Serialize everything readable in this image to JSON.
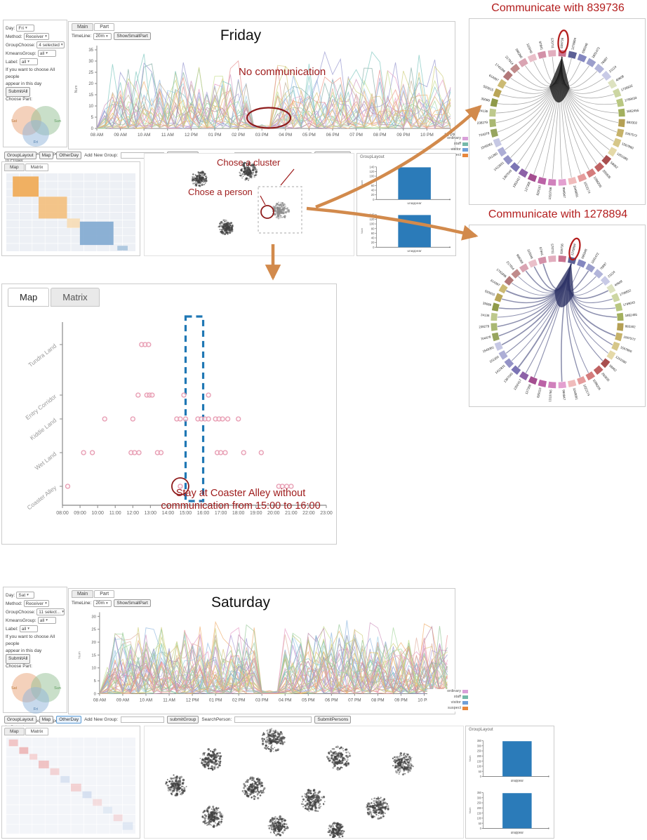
{
  "colors": {
    "annotation_red": "#9e1b1b",
    "title_red": "#b31d1d",
    "arrow_orange": "#d28a4c",
    "bar_blue": "#2b7bb9",
    "dash_blue": "#1f77b4",
    "scatter_pink": "#e79cb2",
    "panel_border": "#cccccc"
  },
  "toolbar": {
    "group_layout": "GroupLayout",
    "map": "Map",
    "other_day": "OtherDay",
    "add_new_group": "Add New Group:",
    "submit_group": "submitGroup",
    "search_person": "SearchPerson:",
    "submit_persons": "SubmitPersons",
    "group_input_value": "",
    "search_input_value": ""
  },
  "venn": {
    "circles": [
      {
        "label": "Sat",
        "color": "#e9a477",
        "text_color": "#c07a3a"
      },
      {
        "label": "Sun",
        "color": "#93bf93",
        "text_color": "#5a9a5a"
      },
      {
        "label": "Fri",
        "color": "#8fb3d9",
        "text_color": "#4a7aaa"
      }
    ]
  },
  "legend": {
    "entries": [
      {
        "label": "ordinary",
        "color": "#d9a0d9"
      },
      {
        "label": "staff",
        "color": "#74b9a8"
      },
      {
        "label": "visitor",
        "color": "#6f9fd8"
      },
      {
        "label": "suspect",
        "color": "#e8873c"
      }
    ]
  },
  "friday": {
    "controls": {
      "day_label": "Day:",
      "day_value": "Fri",
      "method_label": "Method:",
      "method_value": "Receiver",
      "group_choose_label": "GroupChoose:",
      "group_choose_value": "4 selected",
      "kmeans_label": "KmeansGroup:",
      "kmeans_value": "all",
      "label_label": "Label:",
      "label_value": "all",
      "hint_line1": "If you want to choose All people",
      "hint_line2": "appear in this day",
      "submit_all": "SubmitAll",
      "choose_part": "Choose Part:",
      "you_choose": "You Choose: people appear in Friday"
    },
    "header": {
      "tab_main": "Main",
      "tab_part": "Part",
      "timeline_label": "TimeLine:",
      "timeline_value": "20m",
      "show_small": "ShowSmallPart"
    },
    "title": "Friday",
    "annotations": {
      "no_comm": "No communication",
      "chose_cluster": "Chose a cluster",
      "chose_person": "Chose a person"
    },
    "mini_tabs": {
      "map": "Map",
      "matrix": "Matrix"
    },
    "grouplayout_title": "GroupLayout"
  },
  "saturday": {
    "controls": {
      "day_label": "Day:",
      "day_value": "Sat",
      "method_label": "Method:",
      "method_value": "Receiver",
      "group_choose_label": "GroupChoose:",
      "group_choose_value": "11 select...",
      "kmeans_label": "KmeansGroup:",
      "kmeans_value": "all",
      "label_label": "Label:",
      "label_value": "all",
      "hint_line1": "If you want to choose All people",
      "hint_line2": "appear in this day",
      "submit_all": "SubmitAll",
      "choose_part": "Choose Part:",
      "you_choose": "You Choose: people appear in Saturday"
    },
    "header": {
      "tab_main": "Main",
      "tab_part": "Part",
      "timeline_label": "TimeLine:",
      "timeline_value": "20m",
      "show_small": "ShowSmallPart"
    },
    "title": "Saturday",
    "mini_tabs": {
      "map": "Map",
      "matrix": "Matrix"
    },
    "grouplayout_title": "GroupLayout"
  },
  "detail_map": {
    "tab_map": "Map",
    "tab_matrix": "Matrix",
    "annotation_line1": "Stay at Coaster Alley without",
    "annotation_line2": "communication from 15:00 to 16:00"
  },
  "chord1": {
    "title": "Communicate with 839736"
  },
  "chord2": {
    "title": "Communicate with 1278894"
  },
  "chart_data": [
    {
      "id": "friday_timeline",
      "type": "line",
      "title": "Friday",
      "ylabel": "Num",
      "ylim": [
        0,
        35
      ],
      "yticks": [
        0,
        5,
        10,
        15,
        20,
        25,
        30,
        35
      ],
      "x_ticks": [
        "08 AM",
        "09 AM",
        "10 AM",
        "11 AM",
        "12 PM",
        "01 PM",
        "02 PM",
        "03 PM",
        "04 PM",
        "05 PM",
        "06 PM",
        "07 PM",
        "08 PM",
        "09 PM",
        "10 PM",
        "11 PM"
      ],
      "hour_range": [
        8,
        23
      ],
      "series_count": 26,
      "points_per_hour": 3,
      "gap_hours": [
        14.6,
        15.4
      ],
      "annotation": "No communication",
      "grid": false,
      "legend_position": "none"
    },
    {
      "id": "saturday_timeline",
      "type": "line",
      "title": "Saturday",
      "ylabel": "Num",
      "ylim": [
        0,
        30
      ],
      "yticks": [
        0,
        5,
        10,
        15,
        20,
        25,
        30
      ],
      "x_ticks": [
        "08 AM",
        "09 AM",
        "10 AM",
        "11 AM",
        "12 PM",
        "01 PM",
        "02 PM",
        "03 PM",
        "04 PM",
        "05 PM",
        "06 PM",
        "07 PM",
        "08 PM",
        "09 PM",
        "10 PM",
        "11 PM"
      ],
      "hour_range": [
        8,
        23
      ],
      "series_count": 42,
      "points_per_hour": 3,
      "gap_hours": [
        14.7,
        15.8
      ],
      "annotation": "",
      "grid": false,
      "legend_position": "none"
    },
    {
      "id": "friday_grouplayout",
      "type": "bar",
      "title": "GroupLayout",
      "ylabel": "Num",
      "bar_color": "#2b7bb9",
      "charts": [
        {
          "categories": [
            "unappear"
          ],
          "values": [
            138
          ],
          "ylim": [
            0,
            140
          ],
          "yticks": [
            0,
            20,
            40,
            60,
            80,
            100,
            120,
            140
          ]
        },
        {
          "categories": [
            "unappear"
          ],
          "values": [
            138
          ],
          "ylim": [
            0,
            140
          ],
          "yticks": [
            0,
            20,
            40,
            60,
            80,
            100,
            120,
            140
          ]
        }
      ]
    },
    {
      "id": "saturday_grouplayout",
      "type": "bar",
      "title": "GroupLayout",
      "ylabel": "Num",
      "bar_color": "#2b7bb9",
      "charts": [
        {
          "categories": [
            "unappear"
          ],
          "values": [
            345
          ],
          "ylim": [
            0,
            350
          ],
          "yticks": [
            0,
            50,
            100,
            150,
            200,
            250,
            300,
            350
          ]
        },
        {
          "categories": [
            "unappear"
          ],
          "values": [
            345
          ],
          "ylim": [
            0,
            350
          ],
          "yticks": [
            0,
            50,
            100,
            150,
            200,
            250,
            300,
            350
          ]
        }
      ]
    },
    {
      "id": "friday_map",
      "type": "scatter",
      "point_color": "#e79cb2",
      "rows": [
        "Tundra Land",
        "Entry Corridor",
        "Kiddie Land",
        "Wet Land",
        "Coaster Alley"
      ],
      "x_ticks": [
        "08:00",
        "09:00",
        "10:00",
        "11:00",
        "12:00",
        "13:00",
        "14:00",
        "15:00",
        "16:00",
        "17:00",
        "18:00",
        "19:00",
        "20:00",
        "21:00",
        "22:00",
        "23:00"
      ],
      "hour_range": [
        8,
        23
      ],
      "row_points": [
        [
          12.5,
          12.7,
          12.9
        ],
        [
          12.3,
          12.8,
          12.95,
          13.1,
          14.9,
          16.3
        ],
        [
          10.4,
          12.0,
          14.5,
          14.7,
          15.0,
          15.7,
          15.9,
          16.1,
          16.3,
          16.7,
          16.9,
          17.1,
          17.4,
          18.0
        ],
        [
          9.2,
          9.7,
          11.9,
          12.1,
          12.35,
          13.4,
          13.6,
          16.8,
          17.0,
          17.25,
          18.3,
          19.3
        ],
        [
          8.3,
          14.7,
          20.3,
          20.5,
          20.75,
          21.0
        ]
      ],
      "highlight_rect_hours": [
        15,
        16
      ],
      "highlight_circle": {
        "row_index": 4,
        "hour": 14.7
      },
      "annotation_line1": "Stay at Coaster Alley without",
      "annotation_line2": "communication from 15:00 to 16:00"
    },
    {
      "id": "chord_839736",
      "type": "chord",
      "title": "Communicate with 839736",
      "highlight": "839736",
      "chord_color": "rgba(25,25,25,0.38)",
      "bundle_color": "#1a1a1a",
      "all_connected": true,
      "nodes": [
        "839736",
        "1278894",
        "695948",
        "1831472",
        "76897",
        "21124",
        "40608",
        "1706832",
        "1799033",
        "1862455",
        "883302",
        "1067572",
        "1567860",
        "1251080",
        "58062",
        "250835",
        "1088205",
        "1022174",
        "1049091",
        "994947",
        "1310766",
        "829110",
        "127368",
        "1352417",
        "1397043",
        "1412831",
        "151260",
        "1549361",
        "704378",
        "238279",
        "24136",
        "35089",
        "593915",
        "614397",
        "1743396",
        "217914",
        "996266",
        "110049",
        "97841",
        "570711"
      ],
      "palette": [
        "#c9738f",
        "#5c6096",
        "#8487c0",
        "#9b9ecb",
        "#b2b5da",
        "#c8cae6",
        "#dde2c0",
        "#ccd6a2",
        "#b9c781",
        "#a3b05e",
        "#b5a054",
        "#c6b269",
        "#d6c789",
        "#e5d9a8",
        "#a84f4f",
        "#bf6262",
        "#d47c7c",
        "#e59c9c",
        "#f0bcbc",
        "#e3a0d0",
        "#d081bc",
        "#bb62a6",
        "#a44e90",
        "#8d62a8",
        "#7b74b4",
        "#9392c6",
        "#adaed6",
        "#c6c8e4",
        "#97a55f",
        "#aab873",
        "#bec98c",
        "#8f9a49",
        "#baa658",
        "#ccba74",
        "#b27878",
        "#c08b8b",
        "#d9a4b2",
        "#e9bfc9",
        "#d391a8",
        "#e2aebe"
      ]
    },
    {
      "id": "chord_1278894",
      "type": "chord",
      "title": "Communicate with 1278894",
      "highlight": "1278894",
      "chord_color": "rgba(47,52,110,0.55)",
      "bundle_color": "#2f3466",
      "all_connected": false,
      "nodes": [
        "839736",
        "1278894",
        "695948",
        "1831472",
        "76897",
        "21124",
        "40608",
        "1706832",
        "1799033",
        "1862455",
        "883302",
        "1067572",
        "1567860",
        "1251080",
        "58062",
        "250835",
        "1088205",
        "1022174",
        "1049091",
        "994947",
        "1310766",
        "829110",
        "127368",
        "1352417",
        "1397043",
        "1412831",
        "151260",
        "1549361",
        "704378",
        "238279",
        "24136",
        "35089",
        "593915",
        "614397",
        "1743396",
        "217914",
        "996266",
        "110049",
        "97841",
        "570711"
      ],
      "palette": [
        "#c9738f",
        "#5c6096",
        "#8487c0",
        "#9b9ecb",
        "#b2b5da",
        "#c8cae6",
        "#dde2c0",
        "#ccd6a2",
        "#b9c781",
        "#a3b05e",
        "#b5a054",
        "#c6b269",
        "#d6c789",
        "#e5d9a8",
        "#a84f4f",
        "#bf6262",
        "#d47c7c",
        "#e59c9c",
        "#f0bcbc",
        "#e3a0d0",
        "#d081bc",
        "#bb62a6",
        "#a44e90",
        "#8d62a8",
        "#7b74b4",
        "#9392c6",
        "#adaed6",
        "#c6c8e4",
        "#97a55f",
        "#aab873",
        "#bec98c",
        "#8f9a49",
        "#baa658",
        "#ccba74",
        "#b27878",
        "#c08b8b",
        "#d9a4b2",
        "#e9bfc9",
        "#d391a8",
        "#e2aebe"
      ]
    },
    {
      "id": "friday_matrix",
      "type": "heatmap",
      "bg": "#edf0f5",
      "blocks": [
        {
          "x": 0.05,
          "y": 0.04,
          "w": 0.2,
          "h": 0.26,
          "c": "#f0a952",
          "o": 0.9
        },
        {
          "x": 0.25,
          "y": 0.3,
          "w": 0.22,
          "h": 0.28,
          "c": "#f3bc76",
          "o": 0.85
        },
        {
          "x": 0.47,
          "y": 0.58,
          "w": 0.1,
          "h": 0.12,
          "c": "#f7d9ad",
          "o": 0.8
        },
        {
          "x": 0.57,
          "y": 0.62,
          "w": 0.26,
          "h": 0.3,
          "c": "#7fa8d0",
          "o": 0.9
        },
        {
          "x": 0.86,
          "y": 0.93,
          "w": 0.08,
          "h": 0.06,
          "c": "#a9c4de",
          "o": 0.9
        }
      ]
    },
    {
      "id": "saturday_matrix",
      "type": "heatmap",
      "bg": "#f3f5f9",
      "blocks": [
        {
          "x": 0.02,
          "y": 0.02,
          "w": 0.07,
          "h": 0.07,
          "c": "#f0b6b6",
          "o": 0.75
        },
        {
          "x": 0.1,
          "y": 0.1,
          "w": 0.07,
          "h": 0.07,
          "c": "#eaa3a3",
          "o": 0.7
        },
        {
          "x": 0.18,
          "y": 0.17,
          "w": 0.06,
          "h": 0.06,
          "c": "#f4c6c6",
          "o": 0.7
        },
        {
          "x": 0.25,
          "y": 0.24,
          "w": 0.08,
          "h": 0.08,
          "c": "#eda8a8",
          "o": 0.65
        },
        {
          "x": 0.34,
          "y": 0.32,
          "w": 0.07,
          "h": 0.07,
          "c": "#f2bcbc",
          "o": 0.6
        },
        {
          "x": 0.42,
          "y": 0.4,
          "w": 0.07,
          "h": 0.07,
          "c": "#cfdcee",
          "o": 0.7
        },
        {
          "x": 0.5,
          "y": 0.48,
          "w": 0.08,
          "h": 0.08,
          "c": "#f0b2b2",
          "o": 0.55
        },
        {
          "x": 0.59,
          "y": 0.56,
          "w": 0.07,
          "h": 0.07,
          "c": "#c3d2ea",
          "o": 0.6
        },
        {
          "x": 0.67,
          "y": 0.64,
          "w": 0.07,
          "h": 0.07,
          "c": "#f4c4c4",
          "o": 0.5
        },
        {
          "x": 0.75,
          "y": 0.72,
          "w": 0.07,
          "h": 0.07,
          "c": "#d4e0f0",
          "o": 0.55
        },
        {
          "x": 0.83,
          "y": 0.8,
          "w": 0.07,
          "h": 0.07,
          "c": "#f1bcbc",
          "o": 0.45
        },
        {
          "x": 0.9,
          "y": 0.88,
          "w": 0.08,
          "h": 0.08,
          "c": "#cbd9ee",
          "o": 0.5
        }
      ]
    },
    {
      "id": "friday_clusters",
      "type": "clusters",
      "blobs": [
        [
          147,
          25,
          13,
          0
        ],
        [
          78,
          36,
          11,
          0
        ],
        [
          194,
          81,
          12,
          1
        ],
        [
          116,
          105,
          11,
          0
        ]
      ]
    },
    {
      "id": "saturday_clusters",
      "type": "clusters",
      "blobs": [
        [
          183,
          19,
          17,
          0
        ],
        [
          95,
          46,
          16,
          0
        ],
        [
          277,
          46,
          17,
          0
        ],
        [
          368,
          53,
          16,
          0
        ],
        [
          45,
          84,
          15,
          0
        ],
        [
          155,
          88,
          16,
          0
        ],
        [
          240,
          106,
          17,
          0
        ],
        [
          332,
          116,
          16,
          0
        ],
        [
          97,
          129,
          15,
          0
        ],
        [
          190,
          142,
          14,
          0
        ],
        [
          273,
          149,
          12,
          0
        ]
      ]
    }
  ]
}
